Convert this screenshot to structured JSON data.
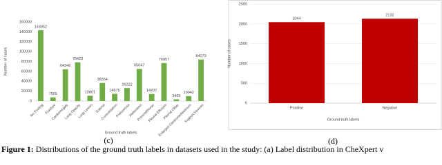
{
  "chart_data": [
    {
      "type": "bar",
      "panel_label": "(c)",
      "y_label": "Number of cases",
      "x_label": "Ground truth labels",
      "categories": [
        "No Finding",
        "Fracture",
        "Cardiomegaly",
        "Lung Opacity",
        "Lung Lesion",
        "Edema",
        "Consolidation",
        "Pneumonia",
        "Atelectasis",
        "Pneumothorax",
        "Pleural Effusion",
        "Pleural Other",
        "Enlarged Cardiomediastinum",
        "Support Devices"
      ],
      "values": [
        143352,
        7505,
        64346,
        78423,
        10801,
        36564,
        14675,
        26222,
        65047,
        14207,
        76957,
        3469,
        10042,
        84073
      ],
      "color": "#70ad47",
      "ylim": [
        0,
        160000
      ],
      "yticks": [
        0,
        20000,
        40000,
        60000,
        80000,
        100000,
        120000,
        140000,
        160000
      ],
      "grid": false
    },
    {
      "type": "bar",
      "panel_label": "(d)",
      "y_label": "Number of cases",
      "x_label": "Ground truth labels",
      "categories": [
        "Positive",
        "Negative"
      ],
      "values": [
        2044,
        2132
      ],
      "color": "#c00000",
      "ylim": [
        0,
        2500
      ],
      "yticks": [
        0,
        500,
        1000,
        1500,
        2000,
        2500
      ],
      "grid": true
    }
  ],
  "caption": {
    "label": "Figure 1:",
    "text": "Distributions of the ground truth labels in datasets used in the study: (a) Label distribution in CheXpert v"
  }
}
